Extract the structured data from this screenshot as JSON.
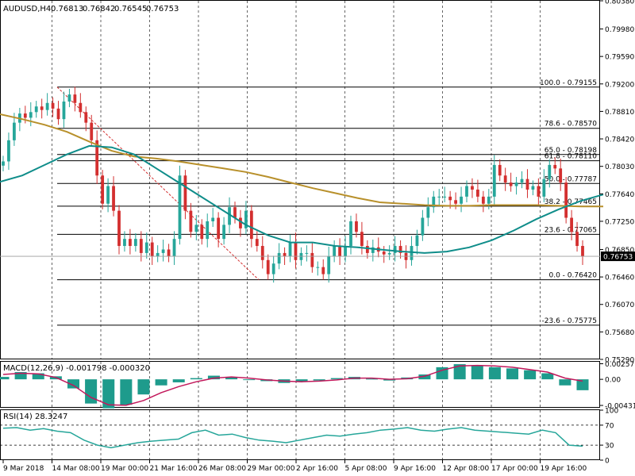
{
  "window": {
    "symbol_label": "AUDUSD,H4",
    "ohlc": [
      "0.76813",
      "0.76842",
      "0.76545",
      "0.76753"
    ]
  },
  "colors": {
    "bull": "#26a69a",
    "bear": "#d32f2f",
    "ma_fast": "#0f8d8a",
    "ma_slow": "#b8902b",
    "macd_hist": "#1e9b8c",
    "macd_signal": "#c2185b",
    "rsi": "#26a69a",
    "fib": "#000000",
    "last_price_bg": "#000000",
    "trendline": "#d32f2f"
  },
  "chart_data": [
    {
      "type": "line",
      "panel": "price",
      "instrument": "AUDUSD",
      "timeframe": "H4",
      "ylim": [
        0.7529,
        0.8038
      ],
      "y_ticks": [
        "0.80380",
        "0.79980",
        "0.79590",
        "0.79200",
        "0.78810",
        "0.78420",
        "0.78030",
        "0.77640",
        "0.77250",
        "0.76850",
        "0.76460",
        "0.76070",
        "0.75680",
        "0.75290"
      ],
      "last_price": "0.76753",
      "x_tick_labels": [
        "9 Mar 2018",
        "14 Mar 08:00",
        "19 Mar 00:00",
        "21 Mar 16:00",
        "26 Mar 08:00",
        "29 Mar 00:00",
        "2 Apr 16:00",
        "5 Apr 08:00",
        "9 Apr 16:00",
        "12 Apr 08:00",
        "17 Apr 00:00",
        "19 Apr 16:00"
      ],
      "fib_levels": [
        {
          "label": "100.0 - 0.79155",
          "value": 0.79155
        },
        {
          "label": "78.6 - 0.78570",
          "value": 0.7857
        },
        {
          "label": "65.0 - 0.78198",
          "value": 0.78198
        },
        {
          "label": "61.8 - 0.78110",
          "value": 0.7811
        },
        {
          "label": "50.0 - 0.77787",
          "value": 0.77787
        },
        {
          "label": "38.2 - 0.77465",
          "value": 0.77465
        },
        {
          "label": "23.6 - 0.77065",
          "value": 0.77065
        },
        {
          "label": "0.0 - 0.76420",
          "value": 0.7642
        },
        {
          "label": "-23.6 - 0.75775",
          "value": 0.75775
        }
      ],
      "close_series": [
        0.781,
        0.784,
        0.7865,
        0.7878,
        0.7872,
        0.788,
        0.7888,
        0.7883,
        0.7893,
        0.7885,
        0.787,
        0.7895,
        0.7905,
        0.7893,
        0.788,
        0.7865,
        0.784,
        0.779,
        0.775,
        0.7775,
        0.774,
        0.769,
        0.77,
        0.769,
        0.77,
        0.768,
        0.7695,
        0.7675,
        0.768,
        0.7685,
        0.7675,
        0.77,
        0.779,
        0.774,
        0.771,
        0.772,
        0.77,
        0.7725,
        0.773,
        0.77,
        0.772,
        0.7745,
        0.773,
        0.7715,
        0.774,
        0.77,
        0.769,
        0.767,
        0.765,
        0.7665,
        0.768,
        0.7675,
        0.7695,
        0.767,
        0.768,
        0.768,
        0.766,
        0.766,
        0.765,
        0.7675,
        0.769,
        0.7675,
        0.769,
        0.7725,
        0.771,
        0.769,
        0.768,
        0.7688,
        0.7682,
        0.7678,
        0.768,
        0.769,
        0.768,
        0.767,
        0.769,
        0.7705,
        0.773,
        0.7745,
        0.776,
        0.776,
        0.776,
        0.7755,
        0.775,
        0.776,
        0.7775,
        0.777,
        0.776,
        0.775,
        0.776,
        0.7805,
        0.779,
        0.778,
        0.7775,
        0.778,
        0.7785,
        0.777,
        0.7775,
        0.776,
        0.7785,
        0.7805,
        0.78,
        0.778,
        0.773,
        0.771,
        0.769,
        0.7675
      ],
      "ma_fast_series": [
        0.7781,
        0.779,
        0.7805,
        0.782,
        0.7832,
        0.783,
        0.782,
        0.78,
        0.778,
        0.776,
        0.774,
        0.772,
        0.7705,
        0.7695,
        0.7695,
        0.769,
        0.7688,
        0.7685,
        0.7682,
        0.768,
        0.7682,
        0.7688,
        0.7698,
        0.7712,
        0.7728,
        0.7742,
        0.7754,
        0.7763
      ],
      "ma_slow_series": [
        0.7877,
        0.787,
        0.7862,
        0.7852,
        0.7838,
        0.7825,
        0.7817,
        0.7814,
        0.781,
        0.7805,
        0.78,
        0.7795,
        0.7788,
        0.778,
        0.7772,
        0.7765,
        0.7758,
        0.7752,
        0.775,
        0.7748,
        0.7747,
        0.7747,
        0.7748,
        0.7748,
        0.7748,
        0.7747,
        0.7746,
        0.7746
      ]
    },
    {
      "type": "bar",
      "panel": "macd",
      "indicator_label": "MACD(12,26,9) -0.001798 -0.000320",
      "ylim": [
        -0.0047,
        0.0029
      ],
      "y_ticks": [
        "0.002571",
        "0.00",
        "-0.004312"
      ],
      "hist_series": [
        0.0004,
        0.0012,
        0.001,
        0.0005,
        -0.0015,
        -0.004,
        -0.0048,
        -0.0042,
        -0.0025,
        -0.001,
        -0.0005,
        0.0002,
        0.0006,
        0.0003,
        -0.0001,
        -0.0003,
        -0.0006,
        -0.0004,
        -0.0002,
        0.0002,
        0.0004,
        0.0001,
        -0.0002,
        0.0003,
        0.0008,
        0.002,
        0.0025,
        0.0022,
        0.002,
        0.0018,
        0.0015,
        0.001,
        -0.001,
        -0.0018
      ],
      "signal_series": [
        0.0008,
        0.001,
        0.0009,
        0.0003,
        -0.001,
        -0.003,
        -0.0042,
        -0.0043,
        -0.0035,
        -0.0022,
        -0.0012,
        -0.0004,
        0.0002,
        0.0004,
        0.0002,
        -0.0001,
        -0.0003,
        -0.0004,
        -0.0003,
        -0.0001,
        0.0002,
        0.0002,
        0.0,
        0.0001,
        0.0005,
        0.0015,
        0.0022,
        0.0023,
        0.0022,
        0.002,
        0.0016,
        0.0012,
        0.0002,
        -0.0003
      ]
    },
    {
      "type": "line",
      "panel": "rsi",
      "indicator_label": "RSI(14) 28.3247",
      "ylim": [
        0,
        100
      ],
      "y_ticks": [
        "100",
        "70",
        "30",
        "0"
      ],
      "levels": [
        70,
        30
      ],
      "rsi_series": [
        64,
        65,
        60,
        63,
        58,
        55,
        40,
        30,
        25,
        30,
        35,
        38,
        40,
        42,
        55,
        60,
        50,
        52,
        45,
        40,
        38,
        35,
        40,
        45,
        50,
        48,
        52,
        55,
        60,
        62,
        65,
        60,
        58,
        62,
        65,
        60,
        58,
        56,
        54,
        52,
        60,
        55,
        30,
        28
      ]
    }
  ]
}
